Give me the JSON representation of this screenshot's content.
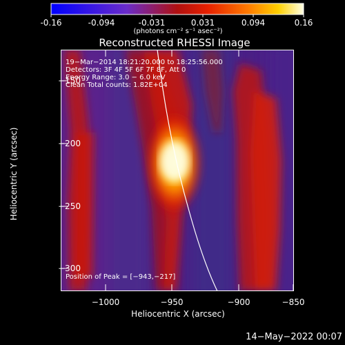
{
  "colorbar": {
    "ticks": [
      "-0.16",
      "-0.094",
      "-0.031",
      "0.031",
      "0.094",
      "0.16"
    ],
    "units": "(photons cm⁻² s⁻¹ asec⁻²)"
  },
  "plot": {
    "title": "Reconstructed RHESSI Image",
    "xlabel": "Heliocentric X (arcsec)",
    "ylabel": "Heliocentric Y (arcsec)",
    "xticks": [
      "−1000",
      "−950",
      "−900",
      "−850"
    ],
    "yticks": [
      "−150",
      "−200",
      "−250",
      "−300"
    ],
    "annot": [
      "19−Mar−2014 18:21:20.000 to 18:25:56.000",
      "Detectors: 3F 4F 5F 6F 7F 8F, Att 0",
      "Energy Range: 3.0 − 6.0 keV",
      "Clean    Total counts: 1.82E+04"
    ],
    "peak_label": "Position of Peak = [−943,−217]"
  },
  "footer": {
    "date": "14−May−2022 00:07"
  },
  "colors": {
    "background": "#000000",
    "axes": "#ffffff"
  }
}
